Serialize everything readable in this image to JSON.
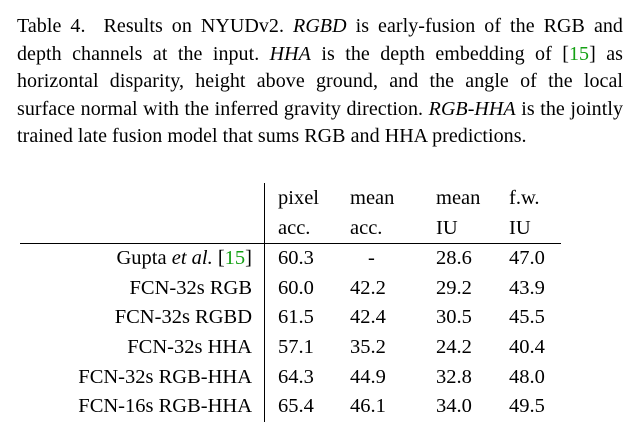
{
  "caption": {
    "label": "Table 4.",
    "part1": "Results on NYUDv2.",
    "rgbd_term": "RGBD",
    "part2": "is early-fusion of the RGB and depth channels at the input.",
    "hha_term": "HHA",
    "part3": "is the depth embedding of",
    "cite_open": "[",
    "cite_num": "15",
    "cite_close": "]",
    "part4": "as horizontal disparity, height above ground, and the angle of the local surface normal with the inferred gravity direction.",
    "rgbhha_term": "RGB-HHA",
    "part5": "is the jointly trained late fusion model that sums RGB and HHA predictions."
  },
  "table": {
    "headers": [
      {
        "line1": "pixel",
        "line2": "acc."
      },
      {
        "line1": "mean",
        "line2": "acc."
      },
      {
        "line1": "mean",
        "line2": "IU"
      },
      {
        "line1": "f.w.",
        "line2": "IU"
      }
    ],
    "rows": [
      {
        "name_prefix": "Gupta ",
        "name_italic": "et al.",
        "name_cite_open": " [",
        "name_cite": "15",
        "name_cite_close": "]",
        "values": [
          "60.3",
          "-",
          "28.6",
          "47.0"
        ]
      },
      {
        "name": "FCN-32s RGB",
        "values": [
          "60.0",
          "42.2",
          "29.2",
          "43.9"
        ]
      },
      {
        "name": "FCN-32s RGBD",
        "values": [
          "61.5",
          "42.4",
          "30.5",
          "45.5"
        ]
      },
      {
        "name": "FCN-32s HHA",
        "values": [
          "57.1",
          "35.2",
          "24.2",
          "40.4"
        ]
      },
      {
        "name": "FCN-32s RGB-HHA",
        "values": [
          "64.3",
          "44.9",
          "32.8",
          "48.0"
        ]
      },
      {
        "name": "FCN-16s RGB-HHA",
        "values": [
          "65.4",
          "46.1",
          "34.0",
          "49.5"
        ],
        "bold_values": true
      }
    ]
  },
  "colors": {
    "citation": "#13a013",
    "text": "#000000"
  }
}
